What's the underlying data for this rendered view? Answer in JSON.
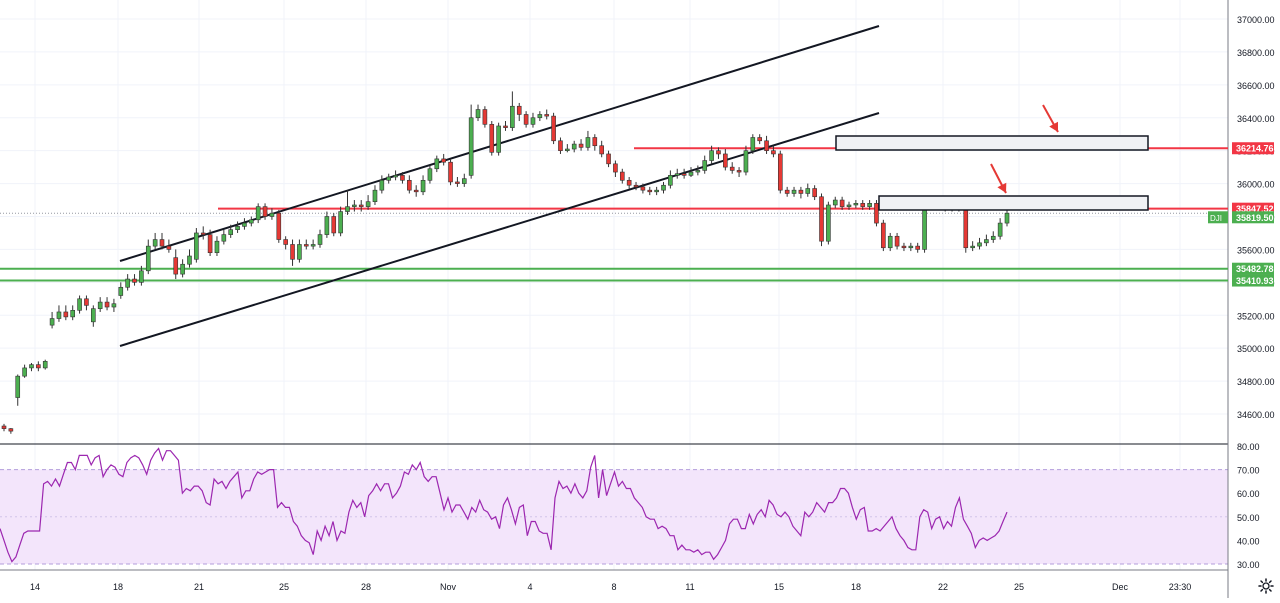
{
  "chart_data": [
    {
      "type": "candlestick",
      "symbol": "DJI",
      "last_price_label": "35819.50",
      "y_ticks": [
        "37000.00",
        "36800.00",
        "36600.00",
        "36400.00",
        "36200.00",
        "36000.00",
        "35800.00",
        "35600.00",
        "35400.00",
        "35200.00",
        "35000.00",
        "34800.00",
        "34600.00"
      ],
      "ylim": [
        34440,
        37050
      ],
      "x_ticks": [
        "14",
        "18",
        "21",
        "25",
        "28",
        "Nov",
        "4",
        "8",
        "11",
        "15",
        "18",
        "22",
        "25",
        "Dec",
        "23:30"
      ],
      "price_levels": [
        {
          "value": 36214.76,
          "label": "36214.76",
          "color": "#f23645"
        },
        {
          "value": 35847.52,
          "label": "35847.52",
          "color": "#f23645"
        },
        {
          "value": 35482.78,
          "label": "35482.78",
          "color": "#4caf50"
        },
        {
          "value": 35410.93,
          "label": "35410.93",
          "color": "#4caf50"
        }
      ],
      "candles": [
        [
          34527,
          34511,
          34540,
          34495
        ],
        [
          34511,
          34496,
          34515,
          34480
        ],
        [
          34700,
          34830,
          34840,
          34650
        ],
        [
          34830,
          34880,
          34900,
          34820
        ],
        [
          34880,
          34900,
          34910,
          34860
        ],
        [
          34900,
          34880,
          34920,
          34860
        ],
        [
          34880,
          34920,
          34930,
          34870
        ],
        [
          35140,
          35180,
          35220,
          35120
        ],
        [
          35180,
          35220,
          35260,
          35160
        ],
        [
          35220,
          35190,
          35260,
          35170
        ],
        [
          35190,
          35230,
          35260,
          35170
        ],
        [
          35230,
          35300,
          35320,
          35210
        ],
        [
          35300,
          35260,
          35320,
          35230
        ],
        [
          35160,
          35240,
          35260,
          35130
        ],
        [
          35240,
          35280,
          35310,
          35220
        ],
        [
          35280,
          35250,
          35310,
          35230
        ],
        [
          35250,
          35270,
          35300,
          35220
        ],
        [
          35320,
          35370,
          35400,
          35300
        ],
        [
          35370,
          35420,
          35450,
          35350
        ],
        [
          35420,
          35400,
          35450,
          35380
        ],
        [
          35400,
          35470,
          35500,
          35380
        ],
        [
          35470,
          35620,
          35660,
          35450
        ],
        [
          35620,
          35660,
          35700,
          35600
        ],
        [
          35660,
          35620,
          35700,
          35600
        ],
        [
          35620,
          35600,
          35660,
          35580
        ],
        [
          35550,
          35450,
          35600,
          35420
        ],
        [
          35450,
          35510,
          35540,
          35430
        ],
        [
          35510,
          35560,
          35600,
          35490
        ],
        [
          35540,
          35700,
          35730,
          35520
        ],
        [
          35700,
          35690,
          35740,
          35660
        ],
        [
          35690,
          35580,
          35720,
          35560
        ],
        [
          35580,
          35650,
          35680,
          35560
        ],
        [
          35650,
          35690,
          35720,
          35630
        ],
        [
          35690,
          35720,
          35750,
          35670
        ],
        [
          35720,
          35740,
          35770,
          35700
        ],
        [
          35740,
          35760,
          35790,
          35720
        ],
        [
          35760,
          35780,
          35800,
          35740
        ],
        [
          35780,
          35860,
          35880,
          35760
        ],
        [
          35860,
          35800,
          35880,
          35780
        ],
        [
          35800,
          35820,
          35850,
          35780
        ],
        [
          35820,
          35660,
          35840,
          35640
        ],
        [
          35660,
          35630,
          35680,
          35600
        ],
        [
          35630,
          35540,
          35660,
          35500
        ],
        [
          35540,
          35630,
          35660,
          35520
        ],
        [
          35630,
          35620,
          35660,
          35600
        ],
        [
          35620,
          35630,
          35660,
          35600
        ],
        [
          35630,
          35690,
          35720,
          35610
        ],
        [
          35690,
          35800,
          35830,
          35670
        ],
        [
          35800,
          35700,
          35820,
          35680
        ],
        [
          35700,
          35830,
          35860,
          35680
        ],
        [
          35830,
          35860,
          35960,
          35810
        ],
        [
          35860,
          35870,
          35900,
          35830
        ],
        [
          35870,
          35860,
          35900,
          35830
        ],
        [
          35860,
          35890,
          35930,
          35840
        ],
        [
          35890,
          35960,
          35990,
          35870
        ],
        [
          35960,
          36020,
          36050,
          35940
        ],
        [
          36020,
          36040,
          36060,
          36000
        ],
        [
          36040,
          36050,
          36080,
          36020
        ],
        [
          36050,
          36020,
          36070,
          36000
        ],
        [
          36020,
          35960,
          36050,
          35940
        ],
        [
          35960,
          35950,
          35990,
          35920
        ],
        [
          35950,
          36020,
          36050,
          35930
        ],
        [
          36020,
          36090,
          36110,
          36000
        ],
        [
          36090,
          36150,
          36170,
          36070
        ],
        [
          36150,
          36130,
          36180,
          36110
        ],
        [
          36130,
          36010,
          36150,
          35990
        ],
        [
          36010,
          36000,
          36040,
          35980
        ],
        [
          36000,
          36030,
          36060,
          35980
        ],
        [
          36050,
          36400,
          36480,
          36030
        ],
        [
          36400,
          36450,
          36480,
          36380
        ],
        [
          36450,
          36360,
          36470,
          36340
        ],
        [
          36360,
          36190,
          36380,
          36170
        ],
        [
          36190,
          36350,
          36370,
          36170
        ],
        [
          36350,
          36340,
          36380,
          36320
        ],
        [
          36340,
          36470,
          36560,
          36320
        ],
        [
          36470,
          36420,
          36490,
          36380
        ],
        [
          36420,
          36360,
          36440,
          36340
        ],
        [
          36360,
          36400,
          36430,
          36340
        ],
        [
          36400,
          36420,
          36440,
          36380
        ],
        [
          36420,
          36410,
          36450,
          36390
        ],
        [
          36410,
          36260,
          36430,
          36240
        ],
        [
          36260,
          36200,
          36280,
          36180
        ],
        [
          36200,
          36210,
          36240,
          36190
        ],
        [
          36210,
          36240,
          36260,
          36190
        ],
        [
          36240,
          36220,
          36270,
          36200
        ],
        [
          36220,
          36280,
          36320,
          36200
        ],
        [
          36280,
          36230,
          36300,
          36200
        ],
        [
          36230,
          36180,
          36260,
          36160
        ],
        [
          36180,
          36120,
          36200,
          36100
        ],
        [
          36120,
          36070,
          36140,
          36040
        ],
        [
          36070,
          36020,
          36090,
          36000
        ],
        [
          36020,
          35990,
          36040,
          35970
        ],
        [
          35990,
          35980,
          36010,
          35960
        ],
        [
          35980,
          35960,
          36000,
          35940
        ],
        [
          35960,
          35950,
          35980,
          35930
        ],
        [
          35950,
          35960,
          35980,
          35930
        ],
        [
          35960,
          35990,
          36010,
          35940
        ],
        [
          35990,
          36050,
          36080,
          35970
        ],
        [
          36050,
          36060,
          36090,
          36030
        ],
        [
          36060,
          36050,
          36090,
          36030
        ],
        [
          36050,
          36070,
          36100,
          36040
        ],
        [
          36070,
          36080,
          36110,
          36050
        ],
        [
          36080,
          36140,
          36170,
          36060
        ],
        [
          36140,
          36200,
          36230,
          36120
        ],
        [
          36200,
          36180,
          36220,
          36150
        ],
        [
          36180,
          36100,
          36210,
          36080
        ],
        [
          36100,
          36080,
          36130,
          36060
        ],
        [
          36080,
          36070,
          36100,
          36040
        ],
        [
          36070,
          36200,
          36230,
          36050
        ],
        [
          36200,
          36280,
          36300,
          36180
        ],
        [
          36280,
          36260,
          36300,
          36240
        ],
        [
          36260,
          36200,
          36290,
          36180
        ],
        [
          36200,
          36180,
          36230,
          36160
        ],
        [
          36180,
          35960,
          36200,
          35940
        ],
        [
          35960,
          35940,
          35980,
          35920
        ],
        [
          35940,
          35960,
          35980,
          35920
        ],
        [
          35960,
          35940,
          35980,
          35910
        ],
        [
          35940,
          35970,
          36000,
          35920
        ],
        [
          35970,
          35920,
          35990,
          35900
        ],
        [
          35920,
          35650,
          35940,
          35620
        ],
        [
          35650,
          35870,
          35890,
          35630
        ],
        [
          35870,
          35900,
          35920,
          35850
        ],
        [
          35900,
          35860,
          35920,
          35840
        ],
        [
          35860,
          35870,
          35890,
          35840
        ],
        [
          35870,
          35880,
          35900,
          35850
        ],
        [
          35880,
          35860,
          35900,
          35840
        ],
        [
          35860,
          35880,
          35900,
          35840
        ],
        [
          35880,
          35760,
          35900,
          35740
        ],
        [
          35760,
          35610,
          35780,
          35590
        ],
        [
          35610,
          35680,
          35700,
          35590
        ],
        [
          35680,
          35620,
          35700,
          35600
        ],
        [
          35620,
          35610,
          35640,
          35590
        ],
        [
          35610,
          35620,
          35640,
          35590
        ],
        [
          35620,
          35600,
          35640,
          35580
        ],
        [
          35600,
          35880,
          35920,
          35580
        ],
        [
          35880,
          35890,
          35920,
          35860
        ],
        [
          35890,
          35860,
          35910,
          35840
        ],
        [
          35860,
          35850,
          35890,
          35830
        ],
        [
          35850,
          35880,
          35920,
          35830
        ],
        [
          35880,
          35850,
          35900,
          35830
        ],
        [
          35850,
          35610,
          35870,
          35580
        ],
        [
          35610,
          35620,
          35650,
          35590
        ],
        [
          35620,
          35640,
          35670,
          35600
        ],
        [
          35640,
          35660,
          35690,
          35620
        ],
        [
          35660,
          35680,
          35710,
          35640
        ],
        [
          35680,
          35760,
          35790,
          35660
        ],
        [
          35760,
          35820,
          35840,
          35740
        ]
      ]
    },
    {
      "type": "line",
      "indicator": "RSI",
      "y_ticks": [
        "80.00",
        "70.00",
        "60.00",
        "50.00",
        "40.00",
        "30.00"
      ],
      "ylim": [
        27.5,
        82
      ],
      "band": [
        30,
        70
      ],
      "color": "#9c27b0",
      "values": [
        45,
        40,
        35,
        31,
        33,
        38,
        43,
        44,
        44,
        44,
        44,
        64,
        65,
        63,
        66,
        63,
        68,
        73,
        73,
        70,
        76,
        76,
        76,
        72,
        75,
        76,
        67,
        70,
        72,
        71,
        68,
        67,
        73,
        75,
        76,
        75,
        72,
        68,
        74,
        77,
        79,
        74,
        78,
        78,
        76,
        74,
        60,
        62,
        61,
        63,
        63,
        61,
        56,
        55,
        66,
        64,
        65,
        62,
        65,
        67,
        69,
        58,
        61,
        61,
        66,
        69,
        68,
        69,
        70,
        70,
        54,
        56,
        54,
        54,
        48,
        46,
        42,
        40,
        39,
        34,
        44,
        40,
        46,
        42,
        48,
        40,
        44,
        43,
        52,
        57,
        54,
        56,
        50,
        59,
        61,
        64,
        61,
        64,
        64,
        58,
        60,
        63,
        69,
        68,
        72,
        70,
        73,
        67,
        65,
        67,
        67,
        60,
        53,
        58,
        52,
        55,
        55,
        52,
        49,
        54,
        52,
        57,
        53,
        52,
        49,
        50,
        45,
        55,
        58,
        53,
        47,
        54,
        55,
        42,
        48,
        48,
        44,
        43,
        43,
        36,
        58,
        65,
        62,
        63,
        60,
        64,
        60,
        58,
        61,
        71,
        76,
        58,
        70,
        59,
        64,
        69,
        63,
        65,
        62,
        62,
        58,
        56,
        54,
        50,
        49,
        49,
        45,
        46,
        45,
        42,
        42,
        36,
        38,
        36,
        36,
        35,
        36,
        34,
        35,
        35,
        32,
        34,
        37,
        40,
        47,
        49,
        49,
        45,
        45,
        51,
        47,
        51,
        53,
        50,
        57,
        55,
        51,
        50,
        52,
        50,
        46,
        44,
        42,
        52,
        50,
        52,
        56,
        54,
        52,
        56,
        56,
        58,
        62,
        62,
        60,
        54,
        49,
        53,
        54,
        44,
        44,
        45,
        44,
        46,
        48,
        50,
        45,
        42,
        40,
        37,
        36,
        36,
        50,
        53,
        52,
        45,
        49,
        50,
        45,
        48,
        46,
        54,
        58,
        49,
        46,
        43,
        37,
        40,
        41,
        40,
        41,
        42,
        44,
        48,
        52
      ]
    }
  ]
}
